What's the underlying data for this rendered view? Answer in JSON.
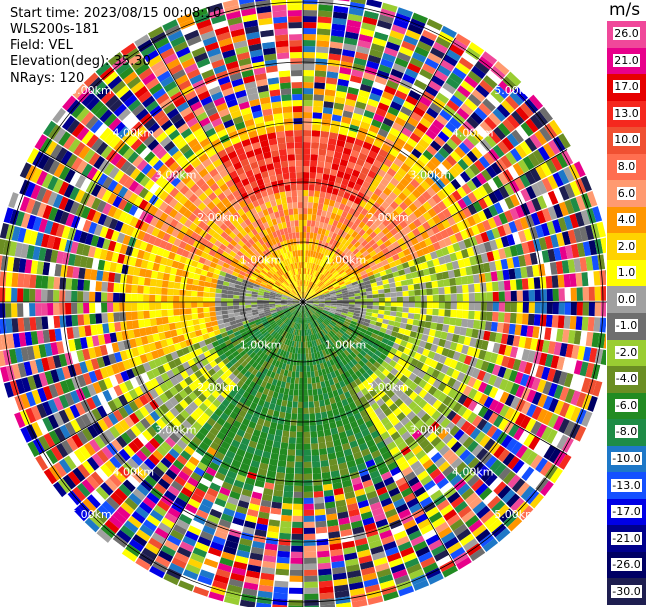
{
  "info": {
    "start_time": "Start time: 2023/08/15 00:08:10",
    "instrument": "WLS200s-181",
    "field": "Field: VEL",
    "elevation": "Elevation(deg): 35.30",
    "nrays": "NRays: 120"
  },
  "colorbar": {
    "unit": "m/s",
    "ticks": [
      "26.0",
      "21.0",
      "17.0",
      "13.0",
      "10.0",
      "8.0",
      "6.0",
      "4.0",
      "2.0",
      "1.0",
      "0.0",
      "-1.0",
      "-2.0",
      "-4.0",
      "-6.0",
      "-8.0",
      "-10.0",
      "-13.0",
      "-17.0",
      "-21.0",
      "-26.0",
      "-30.0"
    ],
    "colors": [
      "#f0489a",
      "#e8008a",
      "#e60000",
      "#f5281e",
      "#f05032",
      "#ff6e50",
      "#ff9a70",
      "#ff9600",
      "#ffd200",
      "#ffff00",
      "#a0a0a0",
      "#6e6e6e",
      "#9acd32",
      "#6b8e23",
      "#228b22",
      "#1e8c46",
      "#1e78c8",
      "#1450ff",
      "#0000e6",
      "#00008c",
      "#000064",
      "#1e1e50"
    ]
  },
  "rings": {
    "labels": [
      "1.00km",
      "2.00km",
      "3.00km",
      "4.00km",
      "5.00km"
    ],
    "km": [
      1,
      2,
      3,
      4,
      5
    ]
  }
}
